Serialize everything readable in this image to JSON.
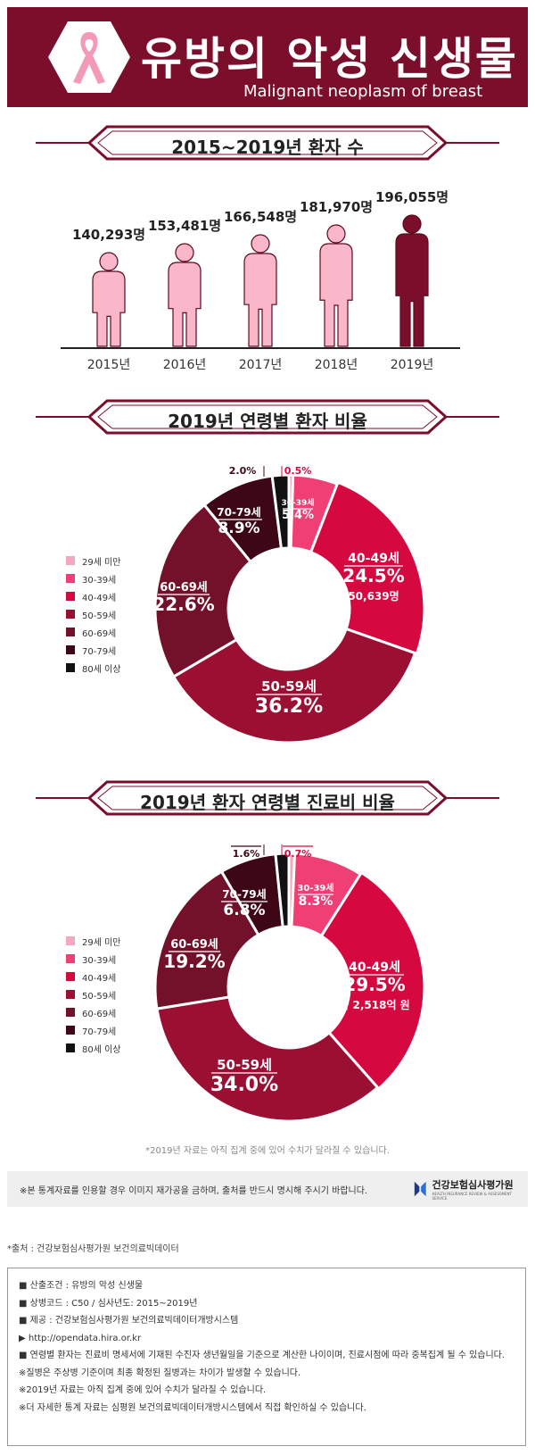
{
  "header": {
    "title": "유방의 악성 신생물",
    "subtitle": "Malignant neoplasm of breast"
  },
  "sections": {
    "patients_title": "2015~2019년 환자 수",
    "age_ratio_title": "2019년 연령별 환자 비율",
    "cost_ratio_title": "2019년 환자 연령별 진료비 비율"
  },
  "legend": [
    "29세 미만",
    "30-39세",
    "40-49세",
    "50-59세",
    "60-69세",
    "70-79세",
    "80세 이상"
  ],
  "colors": {
    "brand": "#7b0f2b",
    "light_pink": "#f9b7c9",
    "highlight": "#7b0f2b",
    "slices": [
      "#f4a7bf",
      "#ef3f74",
      "#d5093f",
      "#9b0f33",
      "#73112b",
      "#3d0715",
      "#111111"
    ]
  },
  "chart_data": [
    {
      "type": "bar",
      "title": "2015~2019년 환자 수",
      "categories": [
        "2015년",
        "2016년",
        "2017년",
        "2018년",
        "2019년"
      ],
      "values": [
        140293,
        153481,
        166548,
        181970,
        196055
      ],
      "value_labels": [
        "140,293명",
        "153,481명",
        "166,548명",
        "181,970명",
        "196,055명"
      ],
      "highlight_index": 4
    },
    {
      "type": "pie",
      "title": "2019년 연령별 환자 비율",
      "categories": [
        "29세 미만",
        "30-39세",
        "40-49세",
        "50-59세",
        "60-69세",
        "70-79세",
        "80세 이상"
      ],
      "values": [
        0.5,
        5.4,
        24.5,
        36.2,
        22.6,
        8.9,
        2.0
      ],
      "pct_labels": [
        "0.5%",
        "5.4%",
        "24.5%",
        "36.2%",
        "22.6%",
        "8.9%",
        "2.0%"
      ],
      "slice_labels": [
        "29세 미만",
        "30-39세",
        "40-49세",
        "50-59세",
        "60-69세",
        "70-79세",
        "80세 이상"
      ],
      "extra": "50,639명"
    },
    {
      "type": "pie",
      "title": "2019년 환자 연령별 진료비 비율",
      "categories": [
        "29세 미만",
        "30-39세",
        "40-49세",
        "50-59세",
        "60-69세",
        "70-79세",
        "80세 이상"
      ],
      "values": [
        0.7,
        8.3,
        29.5,
        34.0,
        19.2,
        6.8,
        1.6
      ],
      "pct_labels": [
        "0.7%",
        "8.3%",
        "29.5%",
        "34.0%",
        "19.2%",
        "6.8%",
        "1.6%"
      ],
      "slice_labels": [
        "29세 미만",
        "30-39세",
        "40-49세",
        "50-59세",
        "60-69세",
        "70-79세",
        "80세 이상"
      ],
      "extra": "약 2,518억 원"
    }
  ],
  "note": "*2019년 자료는 아직 집계 중에 있어 수치가 달라질 수 있습니다.",
  "disclaimer": "※본 통계자료를 인용할 경우 이미지 재가공을 금하며, 출처를 반드시 명시해 주시기 바랍니다.",
  "org": {
    "name": "건강보험심사평가원",
    "name_en": "HEALTH INSURANCE REVIEW & ASSESSMENT SERVICE"
  },
  "source": "*출처 : 건강보험심사평가원 보건의료빅데이터",
  "info_lines": [
    "■ 산출조건 : 유방의 악성 신생물",
    "■ 상병코드 : C50 / 심사년도: 2015~2019년",
    "■ 제공 : 건강보험심사평가원 보건의료빅데이터개방시스템",
    "▶ http://opendata.hira.or.kr",
    "■ 연령별 환자는 진료비 명세서에 기재된 수진자 생년월일을 기준으로 계산한 나이이며, 진료시점에 따라 중복집계 될 수 있습니다.",
    "※질병은 주상병 기준이며 최종 확정된 질병과는 차이가 발생할 수 있습니다.",
    "※2019년 자료는 아직 집계 중에 있어 수치가 달라질 수 있습니다.",
    "※더 자세한 통계 자료는 심평원 보건의료빅데이터개방시스템에서 직접 확인하실 수 있습니다."
  ]
}
